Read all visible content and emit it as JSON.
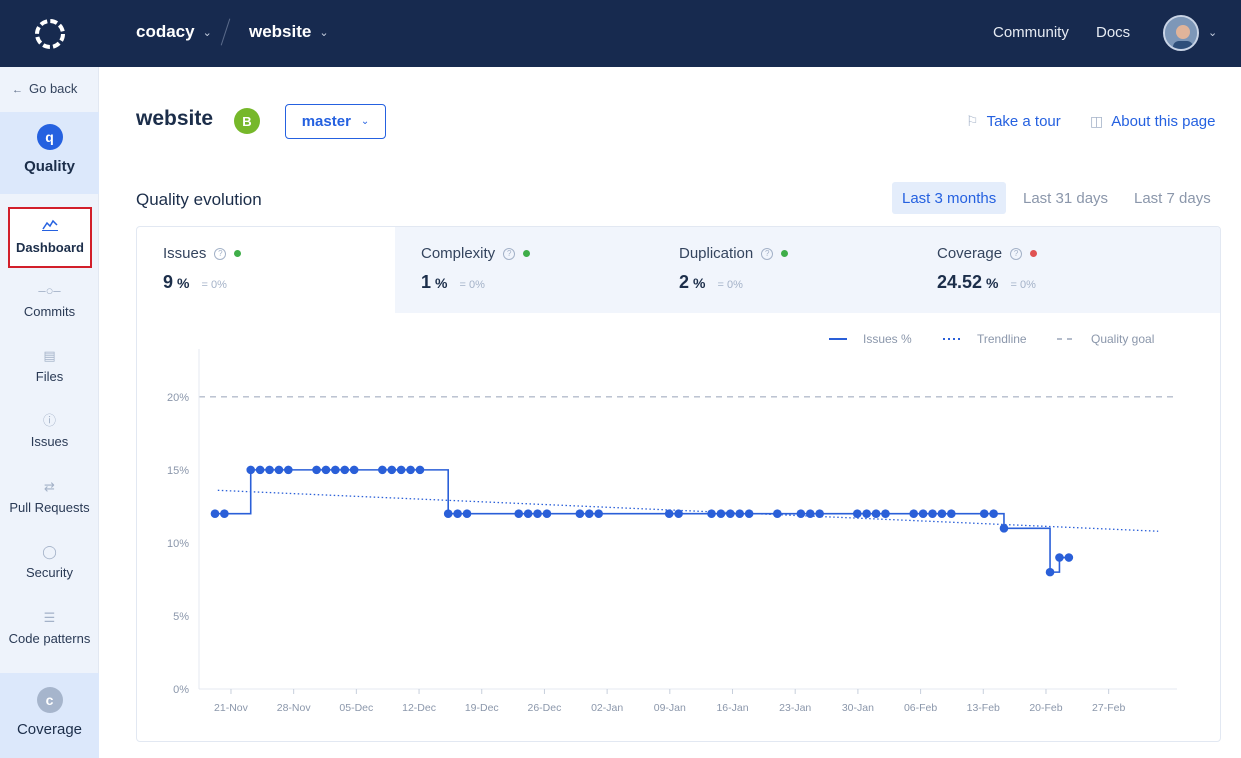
{
  "topbar": {
    "org": "codacy",
    "repo": "website",
    "links": [
      "Community",
      "Docs"
    ]
  },
  "sidebar": {
    "go_back": "Go back",
    "quality": {
      "letter": "q",
      "label": "Quality"
    },
    "items": [
      {
        "label": "Dashboard",
        "icon": "chart-icon",
        "active": true
      },
      {
        "label": "Commits",
        "icon": "commit-icon"
      },
      {
        "label": "Files",
        "icon": "file-icon"
      },
      {
        "label": "Issues",
        "icon": "issue-icon"
      },
      {
        "label": "Pull Requests",
        "icon": "pull-request-icon"
      },
      {
        "label": "Security",
        "icon": "shield-icon"
      },
      {
        "label": "Code patterns",
        "icon": "list-icon"
      }
    ],
    "coverage": {
      "letter": "c",
      "label": "Coverage"
    }
  },
  "header": {
    "title": "website",
    "grade": "B",
    "branch": "master",
    "take_tour": "Take a tour",
    "about": "About this page"
  },
  "section": {
    "title": "Quality evolution",
    "ranges": [
      "Last 3 months",
      "Last 31 days",
      "Last 7 days"
    ],
    "active_range": "Last 3 months"
  },
  "metrics": [
    {
      "name": "Issues",
      "value": "9",
      "unit": "%",
      "delta": "= 0%",
      "status_color": "#3fae49"
    },
    {
      "name": "Complexity",
      "value": "1",
      "unit": "%",
      "delta": "= 0%",
      "status_color": "#3fae49"
    },
    {
      "name": "Duplication",
      "value": "2",
      "unit": "%",
      "delta": "= 0%",
      "status_color": "#3fae49"
    },
    {
      "name": "Coverage",
      "value": "24.52",
      "unit": "%",
      "delta": "= 0%",
      "status_color": "#e05252"
    }
  ],
  "chart_data": {
    "type": "line",
    "legend": [
      "Issues %",
      "Trendline",
      "Quality goal"
    ],
    "legend_position": "top-right",
    "y_ticks": [
      "0%",
      "5%",
      "10%",
      "15%",
      "20%"
    ],
    "ylim": [
      0,
      23
    ],
    "x_ticks": [
      "21-Nov",
      "28-Nov",
      "05-Dec",
      "12-Dec",
      "19-Dec",
      "26-Dec",
      "02-Jan",
      "09-Jan",
      "16-Jan",
      "23-Jan",
      "30-Jan",
      "06-Feb",
      "13-Feb",
      "20-Feb",
      "27-Feb"
    ],
    "xlim": [
      -2,
      102
    ],
    "quality_goal": 20,
    "trendline": {
      "start": [
        0,
        13.6
      ],
      "end": [
        100,
        10.8
      ]
    },
    "series": [
      {
        "name": "Issues %",
        "color": "#2a5fd8",
        "points": [
          [
            -0.3,
            12
          ],
          [
            0.7,
            12
          ],
          [
            3.5,
            15
          ],
          [
            4.5,
            15
          ],
          [
            5.5,
            15
          ],
          [
            6.5,
            15
          ],
          [
            7.5,
            15
          ],
          [
            10.5,
            15
          ],
          [
            11.5,
            15
          ],
          [
            12.5,
            15
          ],
          [
            13.5,
            15
          ],
          [
            14.5,
            15
          ],
          [
            17.5,
            15
          ],
          [
            18.5,
            15
          ],
          [
            19.5,
            15
          ],
          [
            20.5,
            15
          ],
          [
            21.5,
            15
          ],
          [
            24.5,
            12
          ],
          [
            25.5,
            12
          ],
          [
            26.5,
            12
          ],
          [
            32,
            12
          ],
          [
            33,
            12
          ],
          [
            34,
            12
          ],
          [
            35,
            12
          ],
          [
            38.5,
            12
          ],
          [
            39.5,
            12
          ],
          [
            40.5,
            12
          ],
          [
            48,
            12
          ],
          [
            49,
            12
          ],
          [
            52.5,
            12
          ],
          [
            53.5,
            12
          ],
          [
            54.5,
            12
          ],
          [
            55.5,
            12
          ],
          [
            56.5,
            12
          ],
          [
            59.5,
            12
          ],
          [
            62,
            12
          ],
          [
            63,
            12
          ],
          [
            64,
            12
          ],
          [
            68,
            12
          ],
          [
            69,
            12
          ],
          [
            70,
            12
          ],
          [
            71,
            12
          ],
          [
            74,
            12
          ],
          [
            75,
            12
          ],
          [
            76,
            12
          ],
          [
            77,
            12
          ],
          [
            78,
            12
          ],
          [
            81.5,
            12
          ],
          [
            82.5,
            12
          ],
          [
            83.6,
            11
          ],
          [
            88.5,
            8
          ],
          [
            89.5,
            9
          ],
          [
            90.5,
            9
          ]
        ]
      }
    ]
  }
}
